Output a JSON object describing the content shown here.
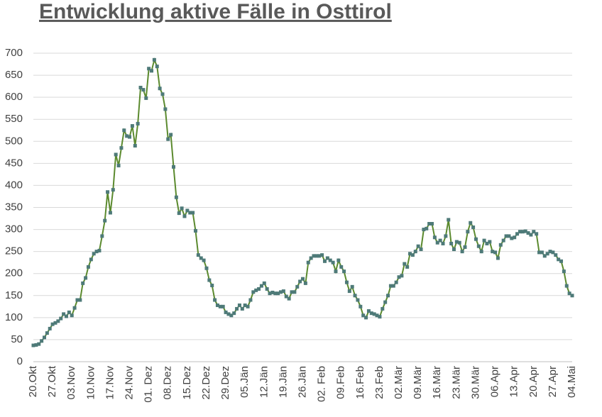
{
  "chart_data": {
    "type": "line",
    "title": "Entwicklung aktive Fälle in Osttirol",
    "categories": [
      "20.Okt",
      null,
      null,
      null,
      null,
      null,
      null,
      "27.Okt",
      null,
      null,
      null,
      null,
      null,
      null,
      "03.Nov",
      null,
      null,
      null,
      null,
      null,
      null,
      "10.Nov",
      null,
      null,
      null,
      null,
      null,
      null,
      "17.Nov",
      null,
      null,
      null,
      null,
      null,
      null,
      "24.Nov",
      null,
      null,
      null,
      null,
      null,
      null,
      "01. Dez",
      null,
      null,
      null,
      null,
      null,
      null,
      "08.Dez",
      null,
      null,
      null,
      null,
      null,
      null,
      "15.Dez",
      null,
      null,
      null,
      null,
      null,
      null,
      "22.Dez",
      null,
      null,
      null,
      null,
      null,
      null,
      "29.Dez",
      null,
      null,
      null,
      null,
      null,
      null,
      "05.Jän",
      null,
      null,
      null,
      null,
      null,
      null,
      "12.Jän",
      null,
      null,
      null,
      null,
      null,
      null,
      "19.Jän",
      null,
      null,
      null,
      null,
      null,
      null,
      "26.Jän",
      null,
      null,
      null,
      null,
      null,
      null,
      "02. Feb",
      null,
      null,
      null,
      null,
      null,
      null,
      "09.Feb",
      null,
      null,
      null,
      null,
      null,
      null,
      "16.Feb",
      null,
      null,
      null,
      null,
      null,
      null,
      "23.Feb",
      null,
      null,
      null,
      null,
      null,
      null,
      "02.Mär",
      null,
      null,
      null,
      null,
      null,
      null,
      "09.Mär",
      null,
      null,
      null,
      null,
      null,
      null,
      "16.Mär",
      null,
      null,
      null,
      null,
      null,
      null,
      "23.Mär",
      null,
      null,
      null,
      null,
      null,
      null,
      "30.Mär",
      null,
      null,
      null,
      null,
      null,
      null,
      "06.Apr",
      null,
      null,
      null,
      null,
      null,
      null,
      "13.Apr",
      null,
      null,
      null,
      null,
      null,
      null,
      "20.Apr",
      null,
      null,
      null,
      null,
      null,
      null,
      "27.Apr",
      null,
      null,
      null,
      null,
      null,
      null,
      "04.Mai"
    ],
    "values": [
      37,
      38,
      40,
      47,
      55,
      65,
      75,
      85,
      88,
      92,
      98,
      108,
      103,
      112,
      105,
      122,
      140,
      140,
      178,
      190,
      215,
      232,
      245,
      250,
      252,
      285,
      320,
      385,
      338,
      390,
      470,
      445,
      485,
      525,
      512,
      510,
      535,
      490,
      540,
      622,
      617,
      598,
      665,
      660,
      685,
      670,
      620,
      607,
      573,
      505,
      515,
      442,
      373,
      337,
      348,
      330,
      343,
      338,
      338,
      297,
      242,
      235,
      230,
      212,
      185,
      173,
      140,
      128,
      125,
      125,
      112,
      108,
      105,
      110,
      120,
      128,
      120,
      128,
      125,
      140,
      158,
      162,
      165,
      172,
      178,
      165,
      155,
      157,
      155,
      155,
      158,
      160,
      148,
      143,
      158,
      158,
      170,
      182,
      188,
      178,
      225,
      235,
      240,
      240,
      240,
      242,
      228,
      235,
      230,
      225,
      205,
      230,
      215,
      205,
      180,
      160,
      170,
      150,
      140,
      125,
      105,
      100,
      115,
      110,
      108,
      105,
      102,
      120,
      135,
      150,
      172,
      172,
      180,
      192,
      195,
      222,
      215,
      245,
      242,
      250,
      262,
      255,
      300,
      302,
      313,
      313,
      282,
      270,
      275,
      268,
      285,
      322,
      268,
      255,
      272,
      270,
      250,
      260,
      295,
      315,
      305,
      278,
      262,
      250,
      275,
      268,
      272,
      250,
      248,
      235,
      265,
      275,
      285,
      285,
      280,
      282,
      290,
      295,
      295,
      296,
      292,
      288,
      295,
      290,
      248,
      248,
      240,
      245,
      250,
      248,
      242,
      232,
      228,
      205,
      172,
      155,
      150
    ],
    "color": "#5b8a2e",
    "marker_color": "#4e7a78",
    "ylim": [
      0,
      700
    ],
    "yticks": [
      0,
      50,
      100,
      150,
      200,
      250,
      300,
      350,
      400,
      450,
      500,
      550,
      600,
      650,
      700
    ],
    "grid": true
  }
}
